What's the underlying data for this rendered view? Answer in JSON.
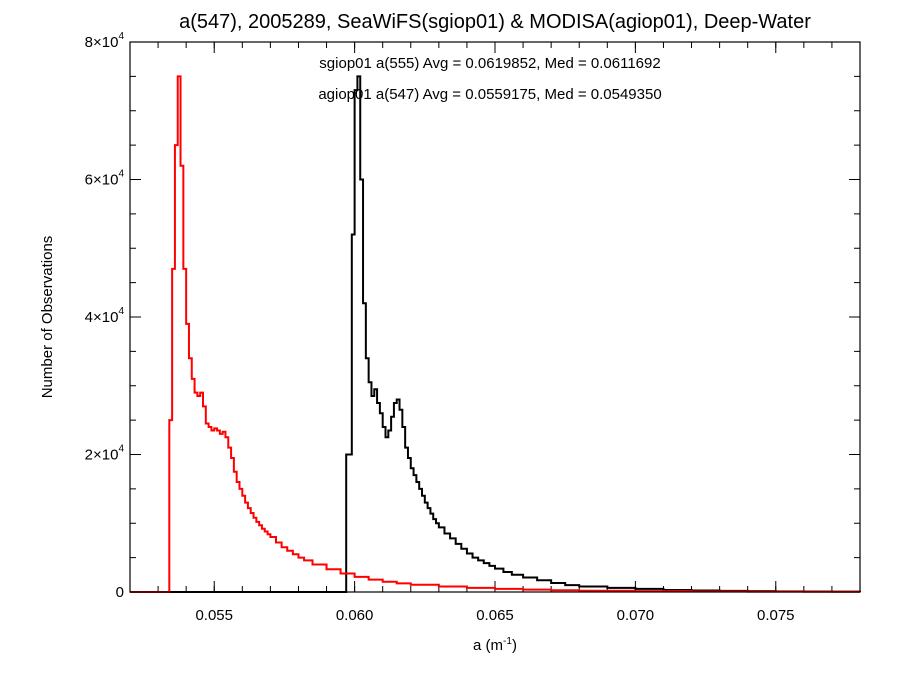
{
  "chart_data": {
    "type": "line",
    "style": "step-histogram",
    "title": "a(547), 2005289, SeaWiFS(sgiop01) & MODISA(agiop01), Deep-Water",
    "xlabel": {
      "base": "a (m",
      "sup": "-1",
      "close": ")"
    },
    "ylabel": "Number of Observations",
    "xlim": [
      0.052,
      0.078
    ],
    "ylim": [
      0,
      80000
    ],
    "x_ticks": [
      {
        "value": 0.055,
        "label": "0.055"
      },
      {
        "value": 0.06,
        "label": "0.060"
      },
      {
        "value": 0.065,
        "label": "0.065"
      },
      {
        "value": 0.07,
        "label": "0.070"
      },
      {
        "value": 0.075,
        "label": "0.075"
      }
    ],
    "y_ticks": [
      {
        "value": 0,
        "label": "0",
        "sup": ""
      },
      {
        "value": 20000,
        "label": "2×10",
        "sup": "4"
      },
      {
        "value": 40000,
        "label": "4×10",
        "sup": "4"
      },
      {
        "value": 60000,
        "label": "6×10",
        "sup": "4"
      },
      {
        "value": 80000,
        "label": "8×10",
        "sup": "4"
      }
    ],
    "x_minor_step": 0.001,
    "y_minor_step": 5000,
    "grid": false,
    "series": [
      {
        "name": "sgiop01 a(555)",
        "color": "#000000",
        "annotation": "sgiop01 a(555) Avg = 0.0619852, Med = 0.0611692",
        "x": [
          0.053,
          0.0596,
          0.0597,
          0.0599,
          0.06,
          0.0601,
          0.0602,
          0.0603,
          0.0604,
          0.0605,
          0.0606,
          0.0607,
          0.0608,
          0.0609,
          0.061,
          0.0611,
          0.0612,
          0.0613,
          0.0614,
          0.0615,
          0.0616,
          0.0617,
          0.0618,
          0.0619,
          0.062,
          0.0621,
          0.0622,
          0.0623,
          0.0624,
          0.0625,
          0.0626,
          0.0627,
          0.0628,
          0.0629,
          0.063,
          0.0632,
          0.0634,
          0.0636,
          0.0638,
          0.064,
          0.0642,
          0.0644,
          0.0646,
          0.0648,
          0.065,
          0.0653,
          0.0656,
          0.066,
          0.0665,
          0.067,
          0.0675,
          0.068,
          0.069,
          0.07,
          0.071,
          0.072,
          0.073,
          0.074,
          0.075,
          0.076,
          0.077,
          0.078
        ],
        "y": [
          0,
          0,
          20000,
          52000,
          73000,
          75000,
          60000,
          42000,
          34000,
          30500,
          28500,
          29500,
          27500,
          26000,
          24000,
          22500,
          23500,
          25500,
          27500,
          28000,
          26500,
          24000,
          21000,
          19500,
          18000,
          17000,
          16000,
          15000,
          14000,
          13000,
          12200,
          11400,
          10600,
          10000,
          9400,
          8500,
          7800,
          7000,
          6300,
          5600,
          5000,
          4600,
          4200,
          3800,
          3400,
          2900,
          2500,
          2100,
          1700,
          1300,
          1000,
          800,
          600,
          450,
          300,
          220,
          160,
          120,
          90,
          70,
          50,
          0
        ]
      },
      {
        "name": "agiop01 a(547)",
        "color": "#ff0000",
        "annotation": "agiop01 a(547) Avg = 0.0559175, Med = 0.0549350",
        "x": [
          0.052,
          0.0534,
          0.0535,
          0.0536,
          0.0537,
          0.0538,
          0.0539,
          0.054,
          0.0541,
          0.0542,
          0.0543,
          0.0544,
          0.0545,
          0.0546,
          0.0547,
          0.0548,
          0.0549,
          0.055,
          0.0551,
          0.0552,
          0.0553,
          0.0554,
          0.0555,
          0.0556,
          0.0557,
          0.0558,
          0.0559,
          0.056,
          0.0561,
          0.0562,
          0.0563,
          0.0564,
          0.0565,
          0.0566,
          0.0567,
          0.0568,
          0.0569,
          0.057,
          0.0572,
          0.0574,
          0.0576,
          0.0578,
          0.058,
          0.0582,
          0.0585,
          0.059,
          0.0595,
          0.06,
          0.0605,
          0.061,
          0.0615,
          0.062,
          0.063,
          0.064,
          0.065,
          0.066,
          0.067,
          0.068,
          0.07,
          0.072,
          0.074,
          0.076,
          0.078
        ],
        "y": [
          0,
          25000,
          47000,
          65000,
          75000,
          62000,
          47000,
          39000,
          34000,
          31000,
          29000,
          28500,
          29000,
          27000,
          24500,
          24000,
          23500,
          23800,
          23500,
          23000,
          23300,
          22500,
          21000,
          19500,
          17500,
          16000,
          15000,
          14000,
          13000,
          12200,
          11500,
          10800,
          10200,
          9700,
          9200,
          8800,
          8400,
          8000,
          7200,
          6500,
          6000,
          5500,
          5000,
          4600,
          4000,
          3300,
          2700,
          2200,
          1800,
          1500,
          1250,
          1050,
          800,
          600,
          450,
          350,
          250,
          180,
          120,
          80,
          50,
          30,
          0
        ]
      }
    ]
  }
}
